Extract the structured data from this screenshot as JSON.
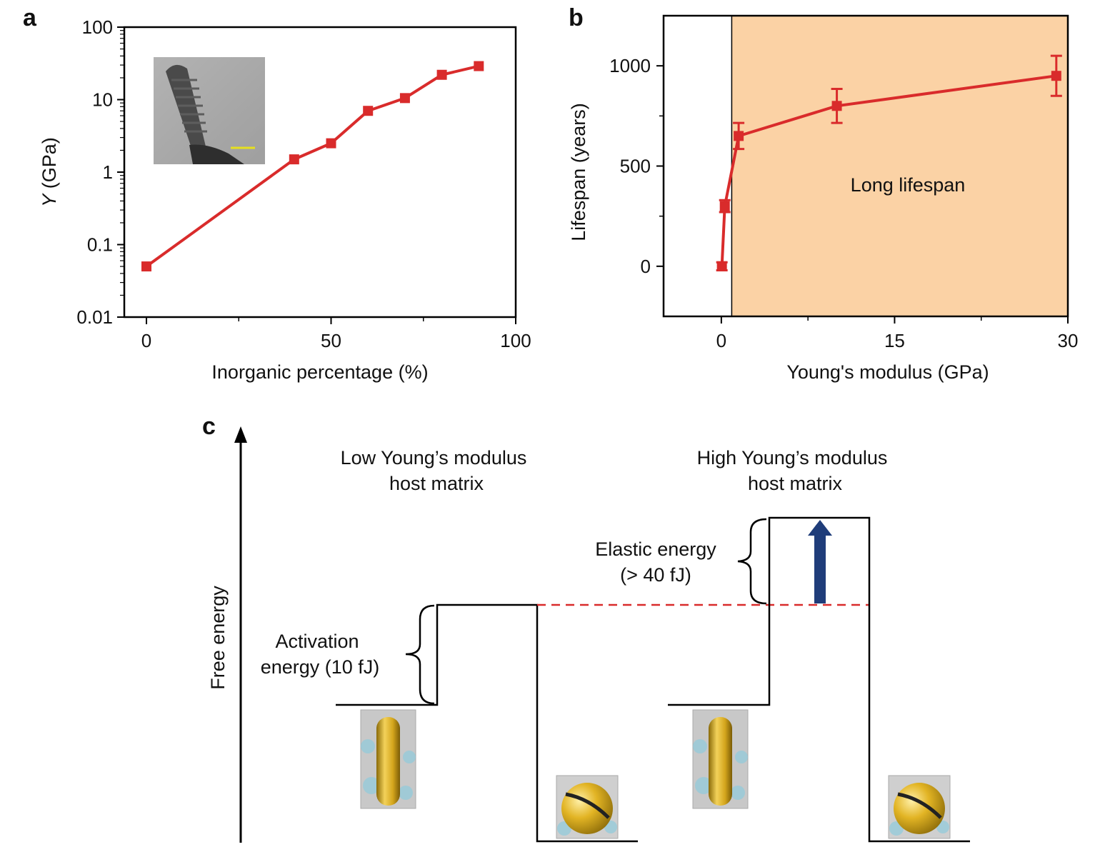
{
  "colors": {
    "series": "#d92b2b",
    "shade": "#fbd2a5",
    "axis": "#000000",
    "arrow": "#1f3d7a",
    "dashed": "#d92b2b",
    "gold": "#d9ad1c",
    "cyan": "#76c3d6"
  },
  "chart_data": [
    {
      "panel": "a",
      "type": "line",
      "xlabel": "Inorganic percentage (%)",
      "ylabel_italic": "Y",
      "ylabel_rest": " (GPa)",
      "xlim": [
        -6,
        100
      ],
      "ylim_log": [
        0.01,
        100
      ],
      "yscale": "log",
      "xticks": [
        0,
        50,
        100
      ],
      "xtick_labels": [
        "0",
        "50",
        "100"
      ],
      "yticks": [
        0.01,
        0.1,
        1,
        10,
        100
      ],
      "ytick_labels": [
        "0.01",
        "0.1",
        "1",
        "10",
        "100"
      ],
      "series": [
        {
          "name": "Y",
          "x": [
            0,
            40,
            50,
            60,
            70,
            80,
            90
          ],
          "y": [
            0.05,
            1.5,
            2.5,
            7,
            10.5,
            22,
            29
          ]
        }
      ],
      "inset": "TEM image of nanorod with yellow scale bar"
    },
    {
      "panel": "b",
      "type": "line",
      "xlabel": "Young's modulus (GPa)",
      "ylabel": "Lifespan (years)",
      "xlim": [
        -5,
        30
      ],
      "ylim": [
        -250,
        1250
      ],
      "xticks": [
        0,
        15,
        30
      ],
      "xtick_labels": [
        "0",
        "15",
        "30"
      ],
      "yticks": [
        0,
        500,
        1000
      ],
      "ytick_labels": [
        "0",
        "500",
        "1000"
      ],
      "shaded_region": {
        "x_from": 0.9,
        "x_to": 30,
        "label": "Long lifespan"
      },
      "series": [
        {
          "name": "Lifespan",
          "x": [
            0.05,
            0.3,
            1.5,
            10,
            29
          ],
          "y": [
            0,
            300,
            650,
            800,
            950
          ],
          "yerr": [
            20,
            30,
            65,
            85,
            100
          ]
        }
      ]
    }
  ],
  "diagram_c": {
    "panel": "c",
    "y_axis_label": "Free energy",
    "low_title_line1": "Low Young’s modulus",
    "low_title_line2": "host matrix",
    "high_title_line1": "High Young’s modulus",
    "high_title_line2": "host matrix",
    "activation_line1": "Activation",
    "activation_line2": "energy (10 fJ)",
    "elastic_line1": "Elastic energy",
    "elastic_line2": "(> 40 fJ)"
  }
}
